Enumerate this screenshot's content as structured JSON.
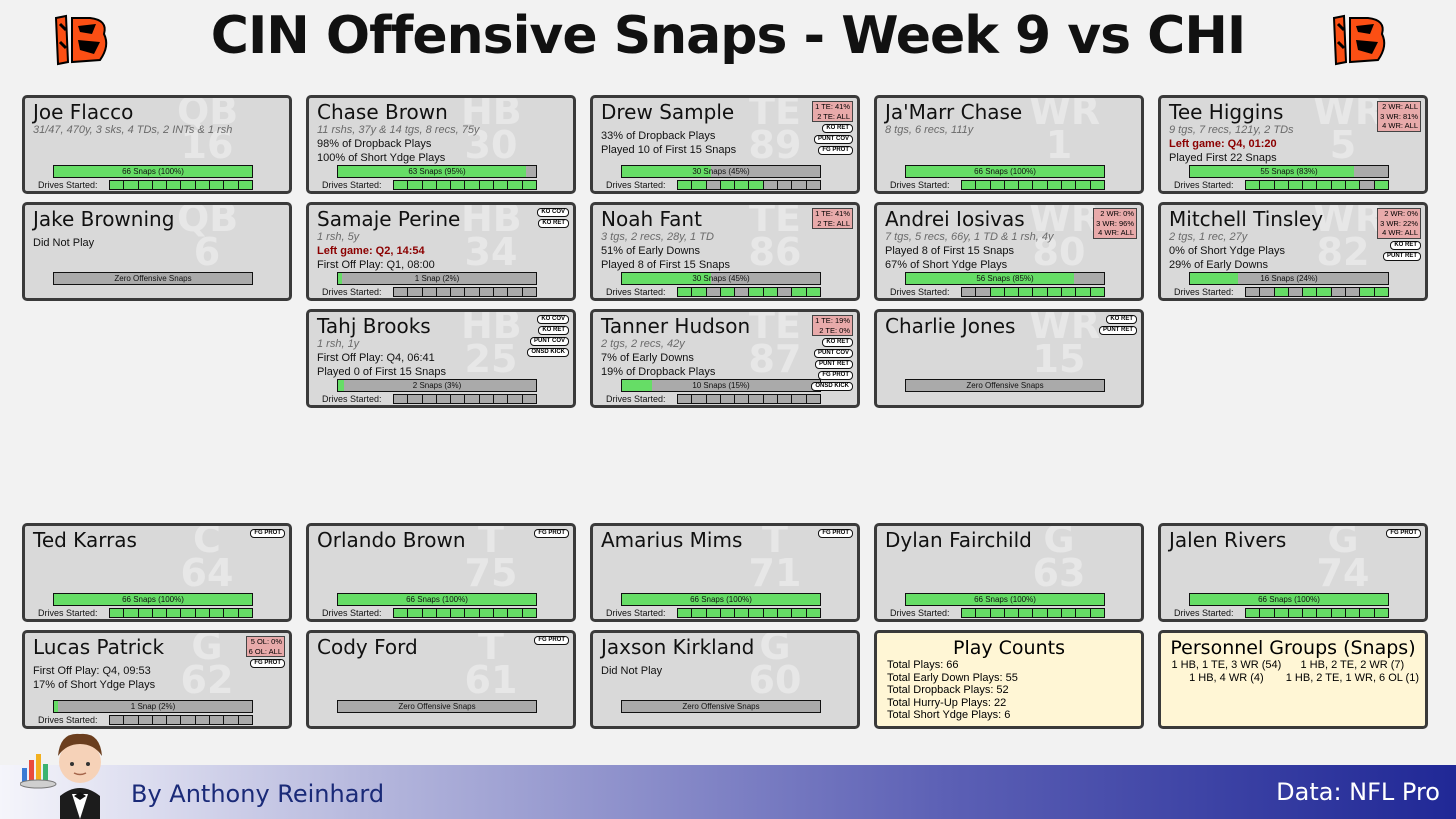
{
  "header": {
    "title": "CIN Offensive Snaps - Week 9 vs CHI"
  },
  "colors": {
    "snap_fill": "#66dd66",
    "empty_bar": "#aaaaaa",
    "card_bg": "#d9d9d9",
    "personnel_bg": "#e8aaaa",
    "left_game_text": "#8b0000",
    "info_bg": "#fff6d5"
  },
  "drives_label": "Drives Started:",
  "cards": [
    {
      "name": "Joe Flacco",
      "pos": "QB",
      "num": "16",
      "lines": [
        {
          "t": "31/47, 470y, 3 sks, 4 TDs, 2 INTs & 1 rsh",
          "k": "stat"
        }
      ],
      "bar": "66 Snaps (100%)",
      "pct": 100,
      "drives": "1111111111",
      "chips": [],
      "pers": []
    },
    {
      "name": "Chase Brown",
      "pos": "HB",
      "num": "30",
      "lines": [
        {
          "t": "11 rshs, 37y & 14 tgs, 8 recs, 75y",
          "k": "stat"
        },
        {
          "t": "98% of Dropback Plays",
          "k": ""
        },
        {
          "t": "100% of Short Ydge Plays",
          "k": ""
        }
      ],
      "bar": "63 Snaps (95%)",
      "pct": 95,
      "drives": "1111111111",
      "chips": [],
      "pers": []
    },
    {
      "name": "Drew Sample",
      "pos": "TE",
      "num": "89",
      "lines": [
        {
          "t": "33% of Dropback Plays",
          "k": "gap"
        },
        {
          "t": "Played 10 of First 15 Snaps",
          "k": ""
        }
      ],
      "bar": "30 Snaps (45%)",
      "pct": 45,
      "drives": "1101110000",
      "chips": [
        "KO RET",
        "PUNT COV",
        "FG PROT"
      ],
      "pers": [
        "1 TE: 41%",
        "2 TE: ALL"
      ]
    },
    {
      "name": "Ja'Marr Chase",
      "pos": "WR",
      "num": "1",
      "lines": [
        {
          "t": "8 tgs, 6 recs, 111y",
          "k": "stat"
        }
      ],
      "bar": "66 Snaps (100%)",
      "pct": 100,
      "drives": "1111111111",
      "chips": [],
      "pers": []
    },
    {
      "name": "Tee Higgins",
      "pos": "WR",
      "num": "5",
      "lines": [
        {
          "t": "9 tgs, 7 recs, 121y, 2 TDs",
          "k": "stat"
        },
        {
          "t": "Left game: Q4, 01:20",
          "k": "left"
        },
        {
          "t": "Played First 22 Snaps",
          "k": ""
        }
      ],
      "bar": "55 Snaps (83%)",
      "pct": 83,
      "drives": "1111111101",
      "chips": [],
      "pers": [
        "2 WR: ALL",
        "3 WR: 81%",
        "4 WR: ALL"
      ]
    },
    {
      "name": "Jake Browning",
      "pos": "QB",
      "num": "6",
      "lines": [
        {
          "t": "Did Not Play",
          "k": "gap"
        }
      ],
      "bar": "Zero Offensive Snaps",
      "pct": 0,
      "drives": "",
      "chips": [],
      "pers": []
    },
    {
      "name": "Samaje Perine",
      "pos": "HB",
      "num": "34",
      "lines": [
        {
          "t": "1 rsh, 5y",
          "k": "stat"
        },
        {
          "t": "Left game: Q2, 14:54",
          "k": "left"
        },
        {
          "t": "First Off Play: Q1, 08:00",
          "k": ""
        }
      ],
      "bar": "1 Snap (2%)",
      "pct": 2,
      "drives": "0000000000",
      "chips": [
        "KO COV",
        "KO RET"
      ],
      "pers": []
    },
    {
      "name": "Noah Fant",
      "pos": "TE",
      "num": "86",
      "lines": [
        {
          "t": "3 tgs, 2 recs, 28y, 1 TD",
          "k": "stat"
        },
        {
          "t": "51% of Early Downs",
          "k": ""
        },
        {
          "t": "Played 8 of First 15 Snaps",
          "k": ""
        }
      ],
      "bar": "30 Snaps (45%)",
      "pct": 45,
      "drives": "1101011011",
      "chips": [],
      "pers": [
        "1 TE: 41%",
        "2 TE: ALL"
      ]
    },
    {
      "name": "Andrei Iosivas",
      "pos": "WR",
      "num": "80",
      "lines": [
        {
          "t": "7 tgs, 5 recs, 66y, 1 TD & 1 rsh, 4y",
          "k": "stat"
        },
        {
          "t": "Played 8 of First 15 Snaps",
          "k": ""
        },
        {
          "t": "67% of Short Ydge Plays",
          "k": ""
        }
      ],
      "bar": "56 Snaps (85%)",
      "pct": 85,
      "drives": "0011111111",
      "chips": [],
      "pers": [
        "2 WR:  0%",
        "3 WR: 96%",
        "4 WR: ALL"
      ]
    },
    {
      "name": "Mitchell Tinsley",
      "pos": "WR",
      "num": "82",
      "lines": [
        {
          "t": "2 tgs, 1 rec, 27y",
          "k": "stat"
        },
        {
          "t": "0% of Short Ydge Plays",
          "k": ""
        },
        {
          "t": "29% of Early Downs",
          "k": ""
        }
      ],
      "bar": "16 Snaps (24%)",
      "pct": 24,
      "drives": "0010110011",
      "chips": [
        "KO RET",
        "PUNT RET"
      ],
      "pers": [
        "2 WR:  0%",
        "3 WR: 22%",
        "4 WR: ALL"
      ]
    },
    {
      "name": "Tahj Brooks",
      "pos": "HB",
      "num": "25",
      "lines": [
        {
          "t": "1 rsh, 1y",
          "k": "stat"
        },
        {
          "t": "First Off Play: Q4, 06:41",
          "k": ""
        },
        {
          "t": "Played 0 of First 15 Snaps",
          "k": ""
        }
      ],
      "bar": "2 Snaps (3%)",
      "pct": 3,
      "drives": "0000000000",
      "chips": [
        "KO COV",
        "KO RET",
        "PUNT COV",
        "ONSD KICK"
      ],
      "pers": []
    },
    {
      "name": "Tanner Hudson",
      "pos": "TE",
      "num": "87",
      "lines": [
        {
          "t": "2 tgs, 2 recs, 42y",
          "k": "stat"
        },
        {
          "t": "7% of Early Downs",
          "k": ""
        },
        {
          "t": "19% of Dropback Plays",
          "k": ""
        }
      ],
      "bar": "10 Snaps (15%)",
      "pct": 15,
      "drives": "0000000000",
      "chips": [
        "KO RET",
        "PUNT COV",
        "PUNT RET",
        "FG PROT",
        "ONSD KICK"
      ],
      "pers": [
        "1 TE: 19%",
        "2 TE:  0%"
      ]
    },
    {
      "name": "Charlie Jones",
      "pos": "WR",
      "num": "15",
      "lines": [],
      "bar": "Zero Offensive Snaps",
      "pct": 0,
      "drives": "",
      "chips": [
        "KO RET",
        "PUNT RET"
      ],
      "pers": []
    },
    {
      "name": "Ted Karras",
      "pos": "C",
      "num": "64",
      "lines": [],
      "bar": "66 Snaps (100%)",
      "pct": 100,
      "drives": "1111111111",
      "chips": [
        "FG PROT"
      ],
      "pers": []
    },
    {
      "name": "Orlando Brown",
      "pos": "T",
      "num": "75",
      "lines": [],
      "bar": "66 Snaps (100%)",
      "pct": 100,
      "drives": "1111111111",
      "chips": [
        "FG PROT"
      ],
      "pers": []
    },
    {
      "name": "Amarius Mims",
      "pos": "T",
      "num": "71",
      "lines": [],
      "bar": "66 Snaps (100%)",
      "pct": 100,
      "drives": "1111111111",
      "chips": [
        "FG PROT"
      ],
      "pers": []
    },
    {
      "name": "Dylan Fairchild",
      "pos": "G",
      "num": "63",
      "lines": [],
      "bar": "66 Snaps (100%)",
      "pct": 100,
      "drives": "1111111111",
      "chips": [],
      "pers": []
    },
    {
      "name": "Jalen Rivers",
      "pos": "G",
      "num": "74",
      "lines": [],
      "bar": "66 Snaps (100%)",
      "pct": 100,
      "drives": "1111111111",
      "chips": [
        "FG PROT"
      ],
      "pers": []
    },
    {
      "name": "Lucas Patrick",
      "pos": "G",
      "num": "62",
      "lines": [
        {
          "t": "First Off Play: Q4, 09:53",
          "k": "gap"
        },
        {
          "t": "17% of Short Ydge Plays",
          "k": ""
        }
      ],
      "bar": "1 Snap (2%)",
      "pct": 2,
      "drives": "0000000000",
      "chips": [
        "FG PROT"
      ],
      "pers": [
        "5 OL:  0%",
        "6 OL: ALL"
      ]
    },
    {
      "name": "Cody Ford",
      "pos": "T",
      "num": "61",
      "lines": [],
      "bar": "Zero Offensive Snaps",
      "pct": 0,
      "drives": "",
      "chips": [
        "FG PROT"
      ],
      "pers": []
    },
    {
      "name": "Jaxson Kirkland",
      "pos": "G",
      "num": "60",
      "lines": [
        {
          "t": "Did Not Play",
          "k": "gap"
        }
      ],
      "bar": "Zero Offensive Snaps",
      "pct": 0,
      "drives": "",
      "chips": [],
      "pers": []
    }
  ],
  "play_counts": {
    "title": "Play Counts",
    "lines": [
      "Total Plays: 66",
      "Total Early Down Plays: 55",
      "Total Dropback Plays: 52",
      "Total Hurry-Up Plays: 22",
      "Total Short Ydge Plays: 6"
    ]
  },
  "personnel_groups": {
    "title": "Personnel Groups (Snaps)",
    "items": [
      "1 HB, 1 TE, 3 WR (54)",
      "1 HB, 2 TE, 2 WR (7)",
      "1 HB, 4 WR (4)",
      "1 HB, 2 TE, 1 WR, 6 OL (1)"
    ]
  },
  "footer": {
    "author": "By Anthony Reinhard",
    "source": "Data: NFL Pro"
  }
}
